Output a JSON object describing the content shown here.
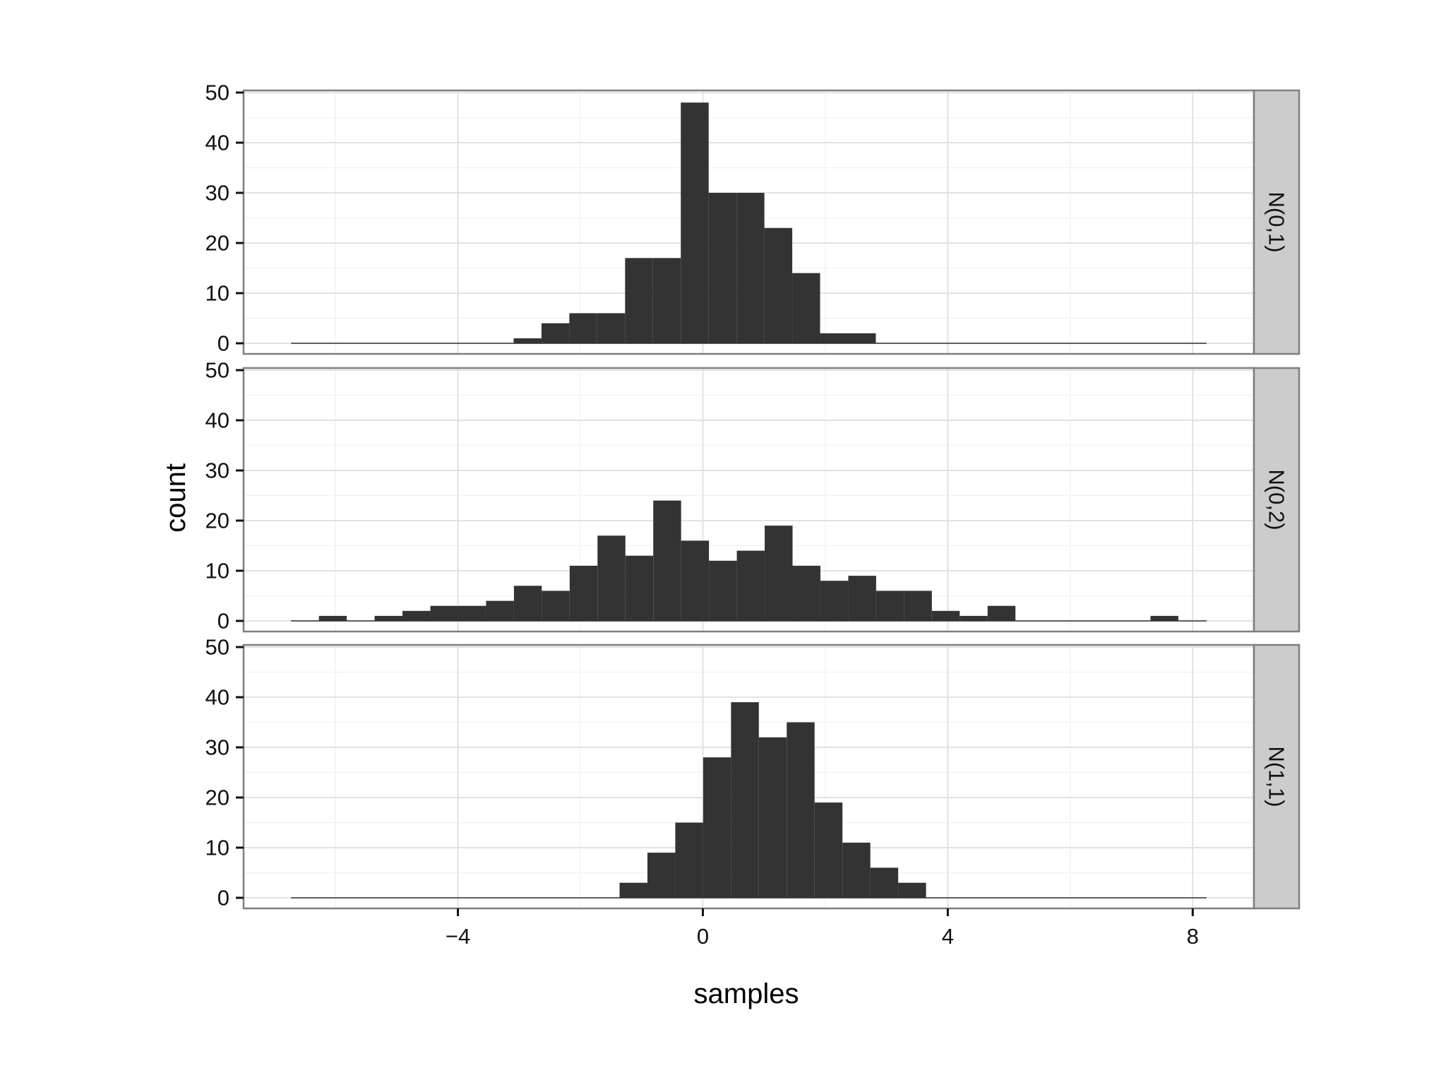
{
  "chart_data": {
    "type": "bar",
    "facet_layout": "rows",
    "xlabel": "samples",
    "ylabel": "count",
    "xlim": [
      -7.5,
      9
    ],
    "ylim": [
      0,
      50
    ],
    "x_ticks": [
      -4,
      0,
      4,
      8
    ],
    "x_tick_labels": [
      "−4",
      "0",
      "4",
      "8"
    ],
    "y_ticks": [
      0,
      10,
      20,
      30,
      40,
      50
    ],
    "y_tick_labels": [
      "0",
      "10",
      "20",
      "30",
      "40",
      "50"
    ],
    "bin_range": [
      -6.725,
      8.225
    ],
    "binwidth": 0.455,
    "grid": true,
    "bar_color": "#333333",
    "strip_fill": "#cccccc",
    "panels": [
      {
        "name": "N(0,1)",
        "bins": [
          {
            "x0": -3.09,
            "x1": -2.635,
            "count": 1
          },
          {
            "x0": -2.635,
            "x1": -2.18,
            "count": 4
          },
          {
            "x0": -2.18,
            "x1": -1.725,
            "count": 6
          },
          {
            "x0": -1.725,
            "x1": -1.27,
            "count": 6
          },
          {
            "x0": -1.27,
            "x1": -0.815,
            "count": 17
          },
          {
            "x0": -0.815,
            "x1": -0.36,
            "count": 17
          },
          {
            "x0": -0.36,
            "x1": 0.095,
            "count": 48
          },
          {
            "x0": 0.095,
            "x1": 0.55,
            "count": 30
          },
          {
            "x0": 0.55,
            "x1": 1.005,
            "count": 30
          },
          {
            "x0": 1.005,
            "x1": 1.46,
            "count": 23
          },
          {
            "x0": 1.46,
            "x1": 1.915,
            "count": 14
          },
          {
            "x0": 1.915,
            "x1": 2.37,
            "count": 2
          },
          {
            "x0": 2.37,
            "x1": 2.825,
            "count": 2
          }
        ]
      },
      {
        "name": "N(0,2)",
        "bins": [
          {
            "x0": -6.725,
            "x1": -6.27,
            "count": 0
          },
          {
            "x0": -6.27,
            "x1": -5.815,
            "count": 1
          },
          {
            "x0": -5.815,
            "x1": -5.36,
            "count": 0
          },
          {
            "x0": -5.36,
            "x1": -4.905,
            "count": 1
          },
          {
            "x0": -4.905,
            "x1": -4.45,
            "count": 2
          },
          {
            "x0": -4.45,
            "x1": -3.995,
            "count": 3
          },
          {
            "x0": -3.995,
            "x1": -3.54,
            "count": 3
          },
          {
            "x0": -3.54,
            "x1": -3.085,
            "count": 4
          },
          {
            "x0": -3.085,
            "x1": -2.63,
            "count": 7
          },
          {
            "x0": -2.63,
            "x1": -2.175,
            "count": 6
          },
          {
            "x0": -2.175,
            "x1": -1.72,
            "count": 11
          },
          {
            "x0": -1.72,
            "x1": -1.265,
            "count": 17
          },
          {
            "x0": -1.265,
            "x1": -0.81,
            "count": 13
          },
          {
            "x0": -0.81,
            "x1": -0.355,
            "count": 24
          },
          {
            "x0": -0.355,
            "x1": 0.1,
            "count": 16
          },
          {
            "x0": 0.1,
            "x1": 0.555,
            "count": 12
          },
          {
            "x0": 0.555,
            "x1": 1.01,
            "count": 14
          },
          {
            "x0": 1.01,
            "x1": 1.465,
            "count": 19
          },
          {
            "x0": 1.465,
            "x1": 1.92,
            "count": 11
          },
          {
            "x0": 1.92,
            "x1": 2.375,
            "count": 8
          },
          {
            "x0": 2.375,
            "x1": 2.83,
            "count": 9
          },
          {
            "x0": 2.83,
            "x1": 3.285,
            "count": 6
          },
          {
            "x0": 3.285,
            "x1": 3.74,
            "count": 6
          },
          {
            "x0": 3.74,
            "x1": 4.195,
            "count": 2
          },
          {
            "x0": 4.195,
            "x1": 4.65,
            "count": 1
          },
          {
            "x0": 4.65,
            "x1": 5.105,
            "count": 3
          },
          {
            "x0": 7.31,
            "x1": 7.765,
            "count": 1
          }
        ]
      },
      {
        "name": "N(1,1)",
        "bins": [
          {
            "x0": -1.36,
            "x1": -0.905,
            "count": 3
          },
          {
            "x0": -0.905,
            "x1": -0.45,
            "count": 9
          },
          {
            "x0": -0.45,
            "x1": 0.005,
            "count": 15
          },
          {
            "x0": 0.005,
            "x1": 0.46,
            "count": 28
          },
          {
            "x0": 0.46,
            "x1": 0.915,
            "count": 39
          },
          {
            "x0": 0.915,
            "x1": 1.37,
            "count": 32
          },
          {
            "x0": 1.37,
            "x1": 1.825,
            "count": 35
          },
          {
            "x0": 1.825,
            "x1": 2.28,
            "count": 19
          },
          {
            "x0": 2.28,
            "x1": 2.735,
            "count": 11
          },
          {
            "x0": 2.735,
            "x1": 3.19,
            "count": 6
          },
          {
            "x0": 3.19,
            "x1": 3.645,
            "count": 3
          }
        ]
      }
    ]
  }
}
